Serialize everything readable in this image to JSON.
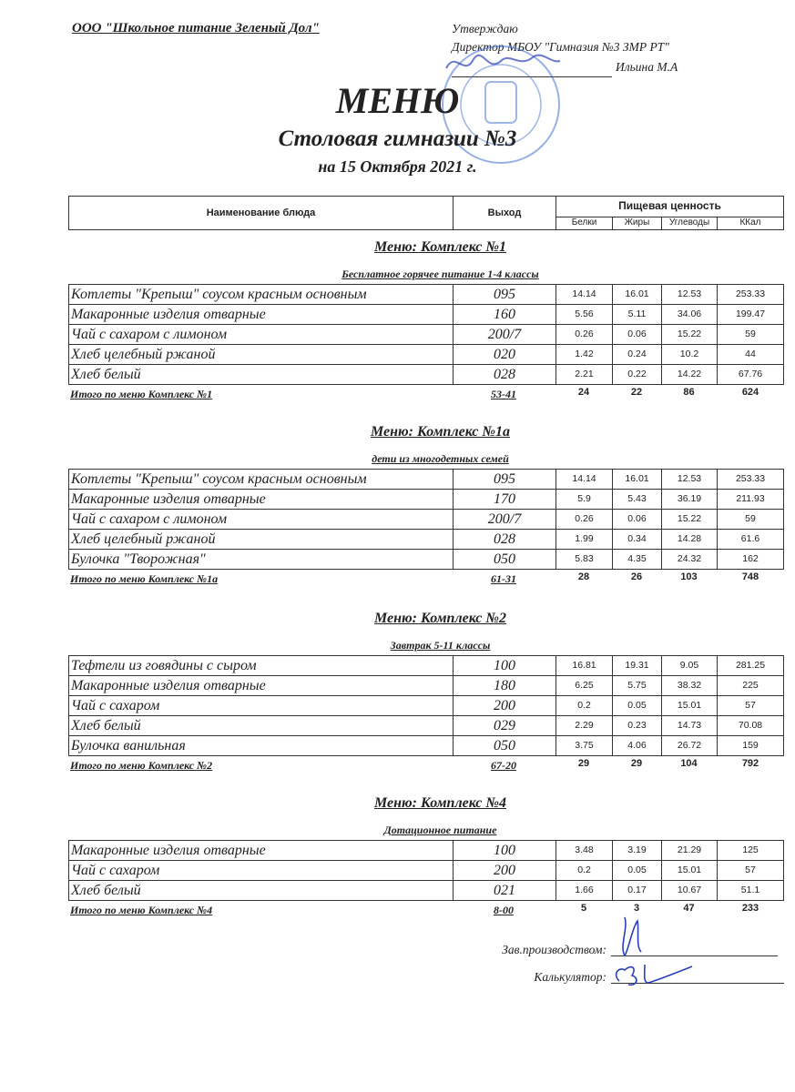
{
  "header": {
    "organization": "ООО \"Школьное питание Зеленый Дол\"",
    "approval": {
      "approve_label": "Утверждаю",
      "position": "Директор МБОУ \"Гимназия №3 ЗМР РТ\"",
      "name": "Ильина М.А"
    },
    "title": "МЕНЮ",
    "subtitle": "Столовая гимназии №3",
    "date": "на 15 Октября 2021 г."
  },
  "columns": {
    "name": "Наименование блюда",
    "output": "Выход",
    "nutrition": "Пищевая ценность",
    "protein": "Белки",
    "fat": "Жиры",
    "carbs": "Углеводы",
    "kcal": "ККал"
  },
  "sections": [
    {
      "title": "Меню: Комплекс №1",
      "subtitle": "Бесплатное горячее питание  1-4 классы",
      "rows": [
        {
          "name": "Котлеты  \"Крепыш\" соусом красным основным",
          "output": "095",
          "protein": "14.14",
          "fat": "16.01",
          "carbs": "12.53",
          "kcal": "253.33"
        },
        {
          "name": "Макаронные изделия отварные",
          "output": "160",
          "protein": "5.56",
          "fat": "5.11",
          "carbs": "34.06",
          "kcal": "199.47"
        },
        {
          "name": "Чай с сахаром с лимоном",
          "output": "200/7",
          "protein": "0.26",
          "fat": "0.06",
          "carbs": "15.22",
          "kcal": "59"
        },
        {
          "name": "Хлеб  целебный ржаной",
          "output": "020",
          "protein": "1.42",
          "fat": "0.24",
          "carbs": "10.2",
          "kcal": "44"
        },
        {
          "name": "Хлеб  белый",
          "output": "028",
          "protein": "2.21",
          "fat": "0.22",
          "carbs": "14.22",
          "kcal": "67.76"
        }
      ],
      "total": {
        "label": "Итого по меню Комплекс №1",
        "price": "53-41",
        "protein": "24",
        "fat": "22",
        "carbs": "86",
        "kcal": "624"
      }
    },
    {
      "title": "Меню: Комплекс №1а",
      "subtitle": "дети из многодетных семей",
      "rows": [
        {
          "name": "Котлеты  \"Крепыш\" соусом красным основным",
          "output": "095",
          "protein": "14.14",
          "fat": "16.01",
          "carbs": "12.53",
          "kcal": "253.33"
        },
        {
          "name": "Макаронные изделия отварные",
          "output": "170",
          "protein": "5.9",
          "fat": "5.43",
          "carbs": "36.19",
          "kcal": "211.93"
        },
        {
          "name": "Чай с сахаром с лимоном",
          "output": "200/7",
          "protein": "0.26",
          "fat": "0.06",
          "carbs": "15.22",
          "kcal": "59"
        },
        {
          "name": "Хлеб  целебный ржаной",
          "output": "028",
          "protein": "1.99",
          "fat": "0.34",
          "carbs": "14.28",
          "kcal": "61.6"
        },
        {
          "name": "Булочка \"Творожная\"",
          "output": "050",
          "protein": "5.83",
          "fat": "4.35",
          "carbs": "24.32",
          "kcal": "162"
        }
      ],
      "total": {
        "label": "Итого по меню Комплекс №1а",
        "price": "61-31",
        "protein": "28",
        "fat": "26",
        "carbs": "103",
        "kcal": "748"
      }
    },
    {
      "title": "Меню: Комплекс №2",
      "subtitle": "Завтрак 5-11 классы",
      "rows": [
        {
          "name": "Тефтели  из говядины с сыром",
          "output": "100",
          "protein": "16.81",
          "fat": "19.31",
          "carbs": "9.05",
          "kcal": "281.25"
        },
        {
          "name": "Макаронные изделия отварные",
          "output": "180",
          "protein": "6.25",
          "fat": "5.75",
          "carbs": "38.32",
          "kcal": "225"
        },
        {
          "name": "Чай с сахаром",
          "output": "200",
          "protein": "0.2",
          "fat": "0.05",
          "carbs": "15.01",
          "kcal": "57"
        },
        {
          "name": "Хлеб  белый",
          "output": "029",
          "protein": "2.29",
          "fat": "0.23",
          "carbs": "14.73",
          "kcal": "70.08"
        },
        {
          "name": "Булочка ванильная",
          "output": "050",
          "protein": "3.75",
          "fat": "4.06",
          "carbs": "26.72",
          "kcal": "159"
        }
      ],
      "total": {
        "label": "Итого по меню Комплекс №2",
        "price": "67-20",
        "protein": "29",
        "fat": "29",
        "carbs": "104",
        "kcal": "792"
      }
    },
    {
      "title": "Меню: Комплекс №4",
      "subtitle": "Дотационное питание",
      "rows": [
        {
          "name": "Макаронные изделия отварные",
          "output": "100",
          "protein": "3.48",
          "fat": "3.19",
          "carbs": "21.29",
          "kcal": "125"
        },
        {
          "name": "Чай с сахаром",
          "output": "200",
          "protein": "0.2",
          "fat": "0.05",
          "carbs": "15.01",
          "kcal": "57"
        },
        {
          "name": "Хлеб белый",
          "output": "021",
          "protein": "1.66",
          "fat": "0.17",
          "carbs": "10.67",
          "kcal": "51.1"
        }
      ],
      "total": {
        "label": "Итого по меню Комплекс №4",
        "price": "8-00",
        "protein": "5",
        "fat": "3",
        "carbs": "47",
        "kcal": "233"
      }
    }
  ],
  "footer": {
    "production_head": "Зав.производством:",
    "calculator": "Калькулятор:"
  },
  "colors": {
    "stamp": "#3f6fd0",
    "signature": "#2b3fb8",
    "text": "#222222"
  }
}
